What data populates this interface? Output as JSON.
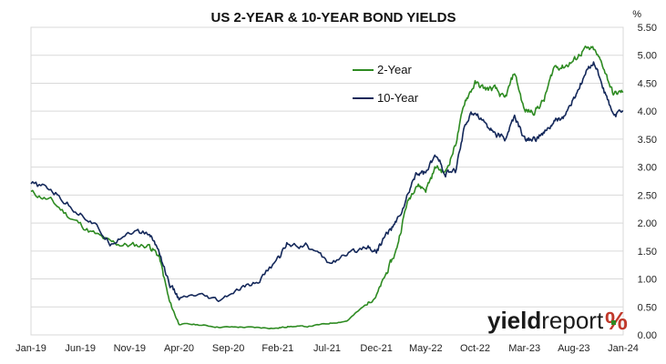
{
  "chart_data": {
    "type": "line",
    "title": "US 2-YEAR & 10-YEAR BOND YIELDS",
    "y_unit": "%",
    "ylim": [
      0,
      5.5
    ],
    "y_ticks": [
      "0.00",
      "0.50",
      "1.00",
      "1.50",
      "2.00",
      "2.50",
      "3.00",
      "3.50",
      "4.00",
      "4.50",
      "5.00",
      "5.50"
    ],
    "x_ticks": [
      "Jan-19",
      "Jun-19",
      "Nov-19",
      "Apr-20",
      "Sep-20",
      "Feb-21",
      "Jul-21",
      "Dec-21",
      "May-22",
      "Oct-22",
      "Mar-23",
      "Aug-23",
      "Jan-24"
    ],
    "grid": "horizontal",
    "legend_position": "top-center",
    "x": [
      "Jan-19",
      "Mar-19",
      "May-19",
      "Jul-19",
      "Sep-19",
      "Nov-19",
      "Jan-20",
      "Feb-20",
      "Mar-20",
      "Apr-20",
      "Jun-20",
      "Aug-20",
      "Oct-20",
      "Dec-20",
      "Feb-21",
      "Mar-21",
      "May-21",
      "Jul-21",
      "Sep-21",
      "Nov-21",
      "Dec-21",
      "Jan-22",
      "Feb-22",
      "Mar-22",
      "Apr-22",
      "May-22",
      "Jun-22",
      "Jul-22",
      "Aug-22",
      "Sep-22",
      "Oct-22",
      "Nov-22",
      "Dec-22",
      "Jan-23",
      "Feb-23",
      "Mar-23",
      "Apr-23",
      "May-23",
      "Jun-23",
      "Jul-23",
      "Aug-23",
      "Sep-23",
      "Oct-23",
      "Nov-23",
      "Dec-23",
      "Jan-24"
    ],
    "series": [
      {
        "name": "2-Year",
        "color": "#2e8b22",
        "values": [
          2.55,
          2.4,
          2.1,
          1.85,
          1.65,
          1.6,
          1.6,
          1.4,
          0.6,
          0.2,
          0.18,
          0.14,
          0.14,
          0.13,
          0.12,
          0.15,
          0.15,
          0.2,
          0.25,
          0.55,
          0.7,
          1.1,
          1.5,
          2.3,
          2.7,
          2.6,
          3.0,
          2.9,
          3.4,
          4.2,
          4.5,
          4.4,
          4.4,
          4.2,
          4.7,
          4.0,
          4.0,
          4.2,
          4.8,
          4.8,
          4.9,
          5.1,
          5.1,
          4.8,
          4.3,
          4.35
        ]
      },
      {
        "name": "10-Year",
        "color": "#14285a",
        "values": [
          2.7,
          2.6,
          2.3,
          2.05,
          1.65,
          1.85,
          1.8,
          1.5,
          0.9,
          0.65,
          0.7,
          0.6,
          0.8,
          0.95,
          1.35,
          1.65,
          1.6,
          1.3,
          1.4,
          1.6,
          1.5,
          1.8,
          2.0,
          2.4,
          2.9,
          2.9,
          3.2,
          2.9,
          2.9,
          3.8,
          4.0,
          3.8,
          3.6,
          3.5,
          3.9,
          3.5,
          3.5,
          3.6,
          3.8,
          3.9,
          4.2,
          4.6,
          4.9,
          4.4,
          3.9,
          4.0
        ]
      }
    ]
  },
  "logo": {
    "word_regular": "yield",
    "word_light": "report",
    "symbol": "%",
    "colors": {
      "text": "#1a1a1a",
      "symbol": "#c0392b",
      "symbol_accent": "#2e8b22"
    }
  }
}
